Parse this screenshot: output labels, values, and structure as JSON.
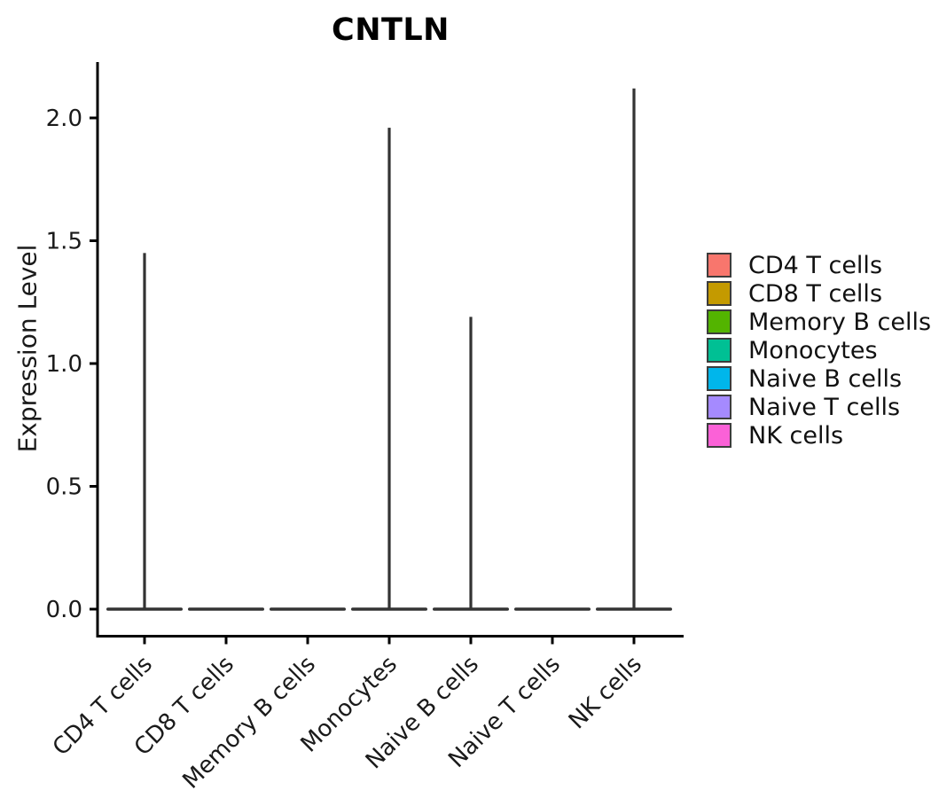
{
  "figure": {
    "title": "CNTLN",
    "y_axis_label": "Expression Level"
  },
  "chart_data": {
    "type": "violin",
    "title": "CNTLN",
    "ylabel": "Expression Level",
    "categories": [
      "CD4 T cells",
      "CD8 T cells",
      "Memory B cells",
      "Monocytes",
      "Naive B cells",
      "Naive T cells",
      "NK cells"
    ],
    "violins": [
      {
        "category": "CD4 T cells",
        "color": "#F8766D",
        "baseline": 0.0,
        "peak_expression": 1.45
      },
      {
        "category": "CD8 T cells",
        "color": "#C49A00",
        "baseline": 0.0,
        "peak_expression": 0.0
      },
      {
        "category": "Memory B cells",
        "color": "#53B400",
        "baseline": 0.0,
        "peak_expression": 0.0
      },
      {
        "category": "Monocytes",
        "color": "#00C094",
        "baseline": 0.0,
        "peak_expression": 1.96
      },
      {
        "category": "Naive B cells",
        "color": "#00B6EB",
        "baseline": 0.0,
        "peak_expression": 1.19
      },
      {
        "category": "Naive T cells",
        "color": "#A58AFF",
        "baseline": 0.0,
        "peak_expression": 0.0
      },
      {
        "category": "NK cells",
        "color": "#FB61D7",
        "baseline": 0.0,
        "peak_expression": 2.12
      }
    ],
    "yticks": [
      0.0,
      0.5,
      1.0,
      1.5,
      2.0
    ],
    "ytick_labels": [
      "0.0",
      "0.5",
      "1.0",
      "1.5",
      "2.0"
    ],
    "ylim": [
      -0.11,
      2.23
    ],
    "grid": false,
    "legend_position": "right-center",
    "shape_note": "violins collapsed flat on baseline 0 with a thin vertical density spike up to peak_expression"
  },
  "legend": {
    "items": [
      {
        "label": "CD4 T cells",
        "color": "#F8766D"
      },
      {
        "label": "CD8 T cells",
        "color": "#C49A00"
      },
      {
        "label": "Memory B cells",
        "color": "#53B400"
      },
      {
        "label": "Monocytes",
        "color": "#00C094"
      },
      {
        "label": "Naive B cells",
        "color": "#00B6EB"
      },
      {
        "label": "Naive T cells",
        "color": "#A58AFF"
      },
      {
        "label": "NK cells",
        "color": "#FB61D7"
      }
    ]
  }
}
